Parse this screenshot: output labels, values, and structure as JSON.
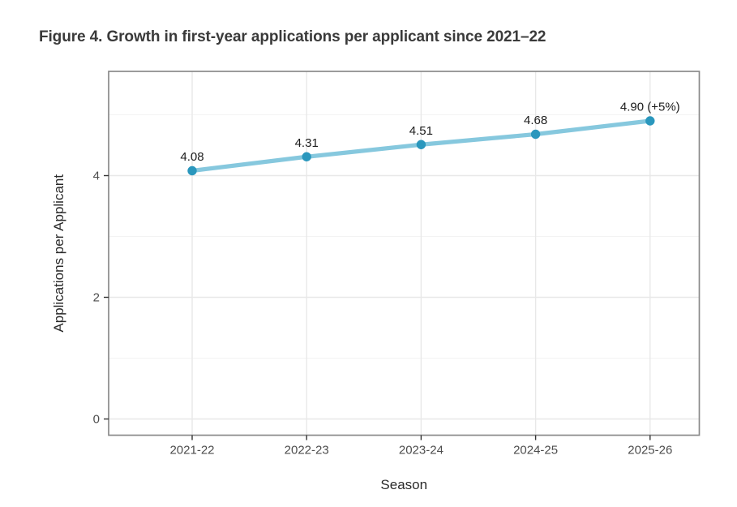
{
  "figure": {
    "title": "Figure 4. Growth in first-year applications per applicant since 2021–22"
  },
  "chart_data": {
    "type": "line",
    "categories": [
      "2021-22",
      "2022-23",
      "2023-24",
      "2024-25",
      "2025-26"
    ],
    "values": [
      4.08,
      4.31,
      4.51,
      4.68,
      4.9
    ],
    "point_labels": [
      "4.08",
      "4.31",
      "4.51",
      "4.68",
      "4.90 (+5%)"
    ],
    "xlabel": "Season",
    "ylabel": "Applications per Applicant",
    "ylim": [
      -0.25,
      5.72
    ],
    "yticks_major": [
      0,
      2,
      4
    ],
    "yticks_minor": [
      1,
      3,
      5
    ],
    "grid": "horizontal major+minor, vertical major at each category",
    "legend": "none",
    "colors": {
      "line": "#86c8de",
      "point": "#2a97bd",
      "grid_major": "#e8e8e8",
      "grid_minor": "#f3f3f3",
      "panel_border": "#8a8a8a",
      "tick_label": "#4d4d4d",
      "axis_title": "#2b2b2b",
      "data_label": "#1c1c1c",
      "title": "#3a3a3a",
      "background": "#ffffff"
    }
  }
}
